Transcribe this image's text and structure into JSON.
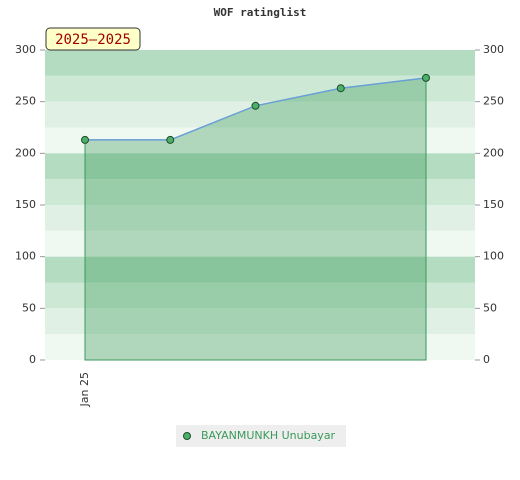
{
  "chart_data": {
    "type": "area",
    "title": "WOF ratinglist",
    "annotation": "2025–2025",
    "categories": [
      "Jan 25",
      null,
      null,
      null,
      null
    ],
    "series": [
      {
        "name": "BAYANMUNKH Unubayar",
        "color": "#3a9a5a",
        "line_color": "#6a9fd8",
        "values": [
          213,
          213,
          246,
          263,
          273
        ]
      }
    ],
    "ylim": [
      0,
      300
    ],
    "yticks": [
      0,
      50,
      100,
      150,
      200,
      250,
      300
    ],
    "y2lim": [
      0,
      300
    ],
    "y2ticks": [
      0,
      50,
      100,
      150,
      200,
      250,
      300
    ]
  }
}
